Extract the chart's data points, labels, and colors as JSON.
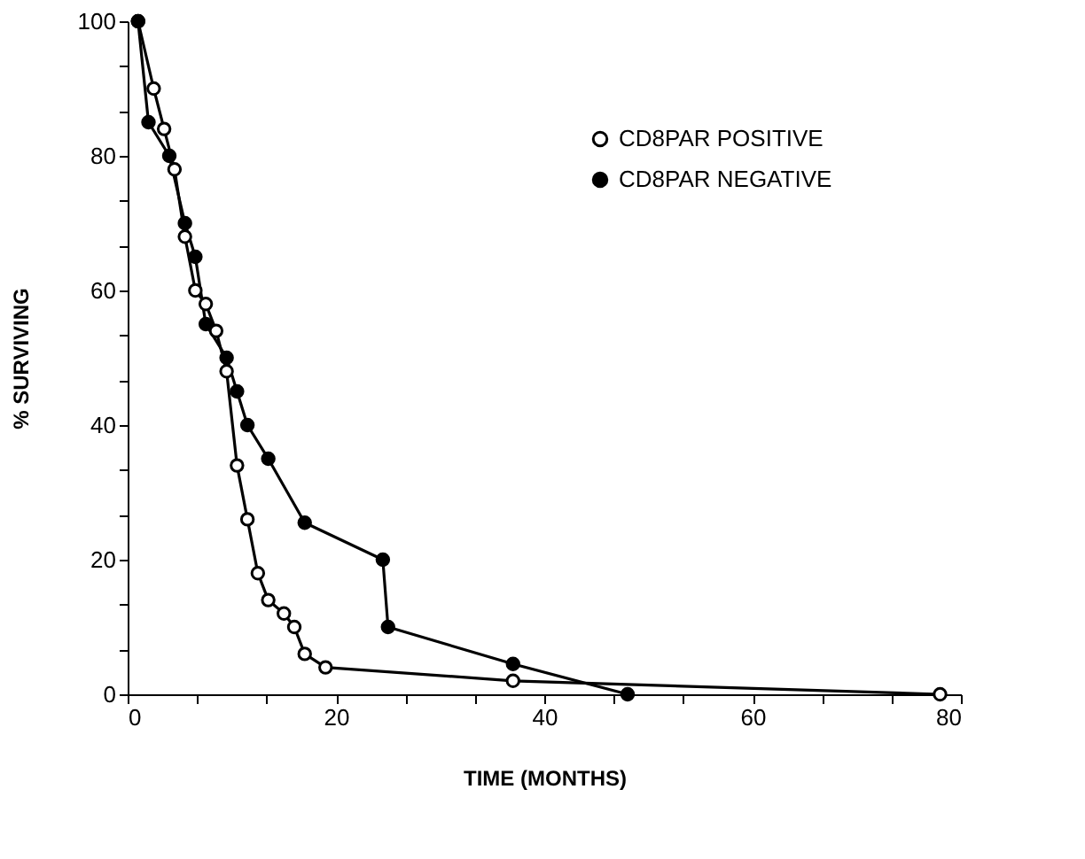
{
  "chart_data": {
    "type": "line",
    "xlabel": "TIME (MONTHS)",
    "ylabel": "% SURVIVING",
    "xlim": [
      0,
      80
    ],
    "ylim": [
      0,
      100
    ],
    "xticks": [
      0,
      {
        "value": 6.67,
        "label": null
      },
      {
        "value": 13.33,
        "label": null
      },
      20,
      {
        "value": 26.67,
        "label": null
      },
      {
        "value": 33.33,
        "label": null
      },
      40,
      {
        "value": 46.67,
        "label": null
      },
      {
        "value": 53.33,
        "label": null
      },
      60,
      {
        "value": 66.67,
        "label": null
      },
      {
        "value": 73.33,
        "label": null
      },
      80
    ],
    "yticks": [
      0,
      {
        "value": 6.67,
        "label": null
      },
      {
        "value": 13.33,
        "label": null
      },
      20,
      {
        "value": 26.67,
        "label": null
      },
      {
        "value": 33.33,
        "label": null
      },
      40,
      {
        "value": 46.67,
        "label": null
      },
      {
        "value": 53.33,
        "label": null
      },
      60,
      {
        "value": 66.67,
        "label": null
      },
      {
        "value": 73.33,
        "label": null
      },
      80,
      {
        "value": 86.67,
        "label": null
      },
      {
        "value": 93.33,
        "label": null
      },
      100
    ],
    "grid": false,
    "legend": "top right",
    "marker": "circle",
    "line_style": "solid",
    "series": [
      {
        "name": "CD8PAR POSITIVE",
        "color": "#ffffff",
        "x": [
          1,
          2.5,
          3.5,
          4.5,
          5.5,
          6.5,
          7.5,
          8.5,
          9.5,
          10.5,
          11.5,
          12.5,
          13.5,
          15,
          16,
          17,
          19,
          37,
          78
        ],
        "values": [
          100,
          90,
          84,
          78,
          68,
          60,
          58,
          54,
          48,
          34,
          26,
          18,
          14,
          12,
          10,
          6,
          4,
          2,
          0
        ]
      },
      {
        "name": "CD8PAR NEGATIVE",
        "color": "#000000",
        "x": [
          1,
          2,
          4,
          5.5,
          6.5,
          7.5,
          9.5,
          10.5,
          11.5,
          13.5,
          17,
          24.5,
          25,
          37,
          48
        ],
        "values": [
          100,
          85,
          80,
          70,
          65,
          55,
          50,
          45,
          40,
          35,
          25.5,
          20,
          10,
          4.5,
          0
        ]
      }
    ]
  }
}
